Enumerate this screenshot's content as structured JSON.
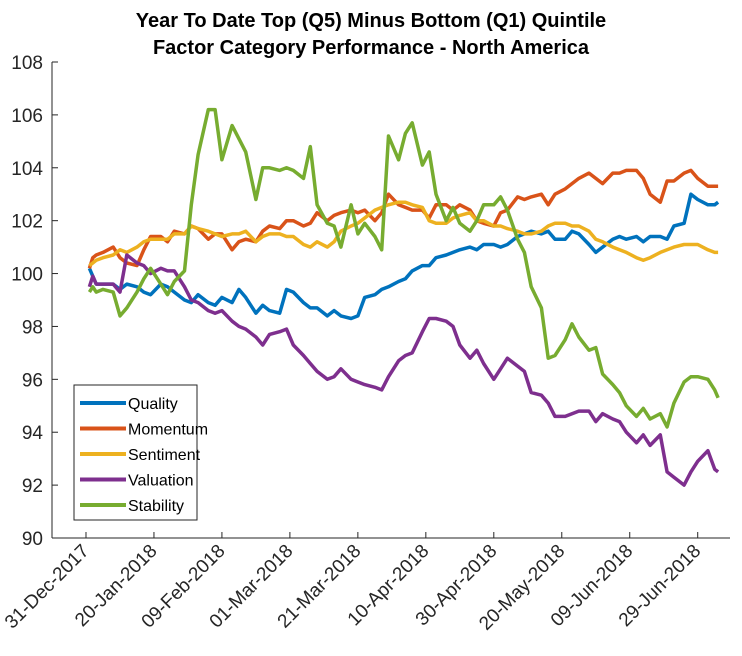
{
  "chart_data": {
    "type": "line",
    "title": [
      "Year To Date Top (Q5) Minus Bottom (Q1) Quintile",
      "Factor Category Performance - North America"
    ],
    "xlabel": "",
    "ylabel": "",
    "x_unit": "days since 31-Dec-2017",
    "xlim": [
      -10,
      189.5
    ],
    "ylim": [
      90,
      108
    ],
    "yticks": [
      90,
      92,
      94,
      96,
      98,
      100,
      102,
      104,
      106,
      108
    ],
    "xticks": [
      {
        "day": 0,
        "label": "31-Dec-2017"
      },
      {
        "day": 20,
        "label": "20-Jan-2018"
      },
      {
        "day": 40,
        "label": "09-Feb-2018"
      },
      {
        "day": 60,
        "label": "01-Mar-2018"
      },
      {
        "day": 80,
        "label": "21-Mar-2018"
      },
      {
        "day": 100,
        "label": "10-Apr-2018"
      },
      {
        "day": 120,
        "label": "30-Apr-2018"
      },
      {
        "day": 140,
        "label": "20-May-2018"
      },
      {
        "day": 160,
        "label": "09-Jun-2018"
      },
      {
        "day": 180,
        "label": "29-Jun-2018"
      }
    ],
    "grid": false,
    "legend_position": "bottom-left",
    "x": [
      1,
      2,
      3,
      5,
      8,
      10,
      12,
      15,
      17,
      19,
      22,
      24,
      26,
      29,
      31,
      33,
      36,
      38,
      40,
      43,
      45,
      47,
      50,
      52,
      54,
      57,
      59,
      61,
      64,
      66,
      68,
      71,
      73,
      75,
      78,
      80,
      82,
      85,
      87,
      89,
      92,
      94,
      96,
      99,
      101,
      103,
      106,
      108,
      110,
      113,
      115,
      117,
      120,
      122,
      124,
      127,
      129,
      131,
      134,
      136,
      138,
      141,
      143,
      145,
      148,
      150,
      152,
      155,
      157,
      159,
      162,
      164,
      166,
      169,
      171,
      173,
      176,
      178,
      180,
      183,
      185,
      186
    ],
    "series": [
      {
        "name": "Quality",
        "color": "#0072BD",
        "values": [
          100.2,
          99.9,
          99.6,
          99.6,
          99.6,
          99.4,
          99.6,
          99.5,
          99.3,
          99.2,
          99.6,
          99.5,
          99.3,
          99.0,
          98.9,
          99.2,
          98.9,
          98.8,
          99.1,
          98.9,
          99.4,
          99.1,
          98.5,
          98.8,
          98.6,
          98.5,
          99.4,
          99.3,
          98.9,
          98.7,
          98.7,
          98.4,
          98.6,
          98.4,
          98.3,
          98.4,
          99.1,
          99.2,
          99.4,
          99.5,
          99.7,
          99.8,
          100.1,
          100.3,
          100.3,
          100.6,
          100.7,
          100.8,
          100.9,
          101.0,
          100.9,
          101.1,
          101.1,
          101.0,
          101.1,
          101.4,
          101.5,
          101.6,
          101.5,
          101.6,
          101.3,
          101.3,
          101.6,
          101.5,
          101.1,
          100.8,
          101.0,
          101.3,
          101.4,
          101.3,
          101.4,
          101.2,
          101.4,
          101.4,
          101.3,
          101.8,
          101.9,
          103.0,
          102.8,
          102.6,
          102.6,
          102.7
        ]
      },
      {
        "name": "Momentum",
        "color": "#D95319",
        "values": [
          100.2,
          100.6,
          100.7,
          100.8,
          101.0,
          100.6,
          100.4,
          100.3,
          100.9,
          101.4,
          101.4,
          101.2,
          101.6,
          101.5,
          101.8,
          101.7,
          101.3,
          101.5,
          101.5,
          100.9,
          101.2,
          101.3,
          101.2,
          101.6,
          101.8,
          101.7,
          102.0,
          102.0,
          101.8,
          101.9,
          102.3,
          102.0,
          102.2,
          102.3,
          102.4,
          102.3,
          102.4,
          102.0,
          102.3,
          103.0,
          102.6,
          102.5,
          102.4,
          102.4,
          102.1,
          102.6,
          102.6,
          102.4,
          102.6,
          102.4,
          102.0,
          101.9,
          101.8,
          102.3,
          102.4,
          102.9,
          102.8,
          102.9,
          103.0,
          102.6,
          103.0,
          103.2,
          103.4,
          103.6,
          103.8,
          103.6,
          103.4,
          103.8,
          103.8,
          103.9,
          103.9,
          103.6,
          103.0,
          102.7,
          103.5,
          103.5,
          103.8,
          103.9,
          103.6,
          103.3,
          103.3,
          103.3
        ]
      },
      {
        "name": "Sentiment",
        "color": "#EDB120",
        "values": [
          100.3,
          100.4,
          100.5,
          100.6,
          100.7,
          100.9,
          100.8,
          101.0,
          101.2,
          101.3,
          101.3,
          101.3,
          101.5,
          101.5,
          101.8,
          101.7,
          101.6,
          101.5,
          101.4,
          101.5,
          101.5,
          101.6,
          101.2,
          101.4,
          101.5,
          101.5,
          101.4,
          101.4,
          101.1,
          101.0,
          101.2,
          101.0,
          101.2,
          101.6,
          101.8,
          101.9,
          102.1,
          102.4,
          102.5,
          102.6,
          102.7,
          102.7,
          102.6,
          102.5,
          102.0,
          101.9,
          101.9,
          102.1,
          102.2,
          102.3,
          102.0,
          102.0,
          101.8,
          101.8,
          101.7,
          101.6,
          101.5,
          101.5,
          101.6,
          101.8,
          101.9,
          101.9,
          101.8,
          101.8,
          101.6,
          101.3,
          101.2,
          101.0,
          100.9,
          100.8,
          100.6,
          100.5,
          100.6,
          100.8,
          100.9,
          101.0,
          101.1,
          101.1,
          101.1,
          100.9,
          100.8,
          100.8
        ]
      },
      {
        "name": "Valuation",
        "color": "#7E2F8E",
        "values": [
          99.5,
          99.9,
          99.6,
          99.6,
          99.6,
          99.3,
          100.7,
          100.4,
          100.3,
          100.0,
          100.2,
          100.1,
          100.1,
          99.5,
          99.0,
          98.9,
          98.6,
          98.5,
          98.6,
          98.2,
          98.0,
          97.9,
          97.6,
          97.3,
          97.7,
          97.8,
          97.9,
          97.3,
          96.9,
          96.6,
          96.3,
          96.0,
          96.1,
          96.4,
          96.0,
          95.9,
          95.8,
          95.7,
          95.6,
          96.1,
          96.7,
          96.9,
          97.0,
          97.8,
          98.3,
          98.3,
          98.2,
          98.0,
          97.3,
          96.8,
          97.1,
          96.6,
          96.0,
          96.4,
          96.8,
          96.5,
          96.3,
          95.5,
          95.4,
          95.1,
          94.6,
          94.6,
          94.7,
          94.8,
          94.8,
          94.4,
          94.7,
          94.5,
          94.4,
          94.0,
          93.6,
          93.9,
          93.5,
          93.9,
          92.5,
          92.3,
          92.0,
          92.5,
          92.9,
          93.3,
          92.6,
          92.5
        ]
      },
      {
        "name": "Stability",
        "color": "#77AC30",
        "values": [
          99.3,
          99.5,
          99.3,
          99.4,
          99.3,
          98.4,
          98.7,
          99.3,
          99.8,
          100.2,
          99.6,
          99.2,
          99.7,
          100.1,
          102.6,
          104.5,
          106.2,
          106.2,
          104.3,
          105.6,
          105.1,
          104.6,
          102.8,
          104.0,
          104.0,
          103.9,
          104.0,
          103.9,
          103.6,
          104.8,
          102.6,
          101.9,
          101.8,
          101.0,
          102.6,
          101.5,
          101.9,
          101.4,
          100.9,
          105.2,
          104.3,
          105.3,
          105.7,
          104.1,
          104.6,
          103.0,
          102.0,
          102.5,
          101.9,
          101.6,
          102.0,
          102.6,
          102.6,
          102.9,
          102.4,
          101.3,
          100.8,
          99.5,
          98.7,
          96.8,
          96.9,
          97.5,
          98.1,
          97.6,
          97.1,
          97.2,
          96.2,
          95.8,
          95.5,
          95.0,
          94.6,
          94.9,
          94.5,
          94.7,
          94.2,
          95.1,
          95.9,
          96.1,
          96.1,
          96.0,
          95.6,
          95.3
        ]
      }
    ]
  }
}
